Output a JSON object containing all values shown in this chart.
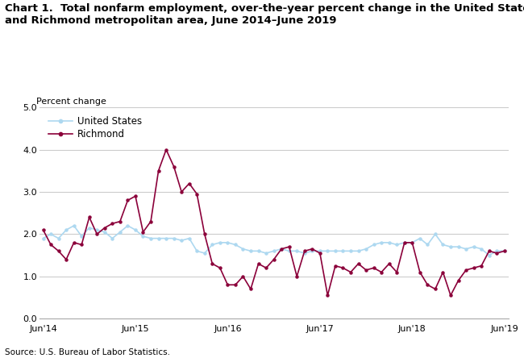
{
  "title_line1": "Chart 1.  Total nonfarm employment, over-the-year percent change in the United States",
  "title_line2": "and Richmond metropolitan area, June 2014–June 2019",
  "ylabel": "Percent change",
  "source": "Source: U.S. Bureau of Labor Statistics.",
  "ylim": [
    0.0,
    5.0
  ],
  "yticks": [
    0.0,
    1.0,
    2.0,
    3.0,
    4.0,
    5.0
  ],
  "xtick_labels": [
    "Jun'14",
    "Jun'15",
    "Jun'16",
    "Jun'17",
    "Jun'18",
    "Jun'19"
  ],
  "us_color": "#add8f0",
  "richmond_color": "#8b003a",
  "us_label": "United States",
  "richmond_label": "Richmond",
  "us_values": [
    1.9,
    2.0,
    1.9,
    2.1,
    2.2,
    1.95,
    2.15,
    2.1,
    2.05,
    1.9,
    2.05,
    2.2,
    2.1,
    1.95,
    1.9,
    1.9,
    1.9,
    1.9,
    1.85,
    1.9,
    1.6,
    1.55,
    1.75,
    1.8,
    1.8,
    1.75,
    1.65,
    1.6,
    1.6,
    1.55,
    1.6,
    1.65,
    1.6,
    1.6,
    1.55,
    1.6,
    1.6,
    1.6,
    1.6,
    1.6,
    1.6,
    1.6,
    1.65,
    1.75,
    1.8,
    1.8,
    1.75,
    1.8,
    1.8,
    1.9,
    1.75,
    2.0,
    1.75,
    1.7,
    1.7,
    1.65,
    1.7,
    1.65,
    1.5,
    1.6,
    1.6
  ],
  "richmond_values": [
    2.1,
    1.75,
    1.6,
    1.4,
    1.8,
    1.75,
    2.4,
    2.0,
    2.15,
    2.25,
    2.3,
    2.8,
    2.9,
    2.05,
    2.3,
    3.5,
    4.0,
    3.6,
    3.0,
    3.2,
    2.95,
    2.0,
    1.3,
    1.2,
    0.8,
    0.8,
    1.0,
    0.7,
    1.3,
    1.2,
    1.4,
    1.65,
    1.7,
    1.0,
    1.6,
    1.65,
    1.55,
    0.55,
    1.25,
    1.2,
    1.1,
    1.3,
    1.15,
    1.2,
    1.1,
    1.3,
    1.1,
    1.8,
    1.8,
    1.1,
    0.8,
    0.7,
    1.1,
    0.55,
    0.9,
    1.15,
    1.2,
    1.25,
    1.6,
    1.55,
    1.6
  ],
  "n_points": 61,
  "background_color": "#ffffff",
  "grid_color": "#cccccc",
  "title_fontsize": 9.5,
  "tick_fontsize": 8,
  "legend_fontsize": 8.5,
  "source_fontsize": 7.5
}
